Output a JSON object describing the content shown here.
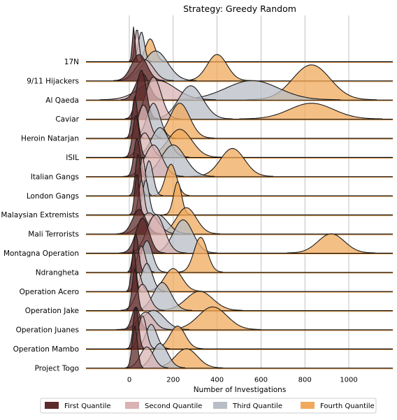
{
  "chart_data": {
    "type": "ridgeline",
    "title": "Strategy: Greedy Random",
    "xlabel": "Number of Investigations",
    "ylabel": "",
    "xlim": [
      -200,
      1200
    ],
    "xticks": [
      0,
      200,
      400,
      600,
      800,
      1000
    ],
    "grid": "vertical",
    "legend_position": "bottom",
    "series": [
      {
        "name": "First Quantile",
        "color": "#5e2a2a"
      },
      {
        "name": "Second Quantile",
        "color": "#d9b3b3"
      },
      {
        "name": "Third Quantile",
        "color": "#b8bec6"
      },
      {
        "name": "Fourth Quantile",
        "color": "#f0a95c"
      }
    ],
    "rows": [
      {
        "label": "17N",
        "peaks": [
          {
            "peak": 20,
            "spread": 6,
            "height": 1.0
          },
          {
            "peak": 35,
            "spread": 9,
            "height": 0.95
          },
          {
            "peak": 55,
            "spread": 14,
            "height": 0.85
          },
          {
            "peak": 95,
            "spread": 22,
            "height": 0.65
          }
        ]
      },
      {
        "label": "9/11 Hijackers",
        "peaks": [
          {
            "peak": 45,
            "spread": 35,
            "height": 0.75
          },
          {
            "peak": 70,
            "spread": 40,
            "height": 0.6
          },
          {
            "peak": 120,
            "spread": 55,
            "height": 0.85
          },
          {
            "peak": 400,
            "spread": 45,
            "height": 0.75
          }
        ]
      },
      {
        "label": "Al Qaeda",
        "peaks": [
          {
            "peak": 60,
            "spread": 30,
            "height": 0.75
          },
          {
            "peak": 130,
            "spread": 80,
            "height": 0.55
          },
          {
            "peak": 560,
            "spread": 120,
            "height": 0.55
          },
          {
            "peak": 830,
            "spread": 85,
            "height": 1.0
          }
        ]
      },
      {
        "label": "Caviar",
        "peaks": [
          {
            "peak": 55,
            "spread": 22,
            "height": 1.4
          },
          {
            "peak": 110,
            "spread": 35,
            "height": 1.2
          },
          {
            "peak": 280,
            "spread": 55,
            "height": 0.95
          },
          {
            "peak": 830,
            "spread": 100,
            "height": 0.45
          }
        ]
      },
      {
        "label": "Heroin Natarjan",
        "peaks": [
          {
            "peak": 25,
            "spread": 12,
            "height": 1.2
          },
          {
            "peak": 65,
            "spread": 25,
            "height": 0.95
          },
          {
            "peak": 110,
            "spread": 30,
            "height": 1.0
          },
          {
            "peak": 230,
            "spread": 45,
            "height": 1.0
          }
        ]
      },
      {
        "label": "ISIL",
        "peaks": [
          {
            "peak": 30,
            "spread": 15,
            "height": 1.2
          },
          {
            "peak": 70,
            "spread": 28,
            "height": 0.7
          },
          {
            "peak": 140,
            "spread": 40,
            "height": 0.85
          },
          {
            "peak": 230,
            "spread": 55,
            "height": 0.8
          }
        ]
      },
      {
        "label": "Italian Gangs",
        "peaks": [
          {
            "peak": 35,
            "spread": 14,
            "height": 1.1
          },
          {
            "peak": 110,
            "spread": 40,
            "height": 0.9
          },
          {
            "peak": 200,
            "spread": 55,
            "height": 0.9
          },
          {
            "peak": 470,
            "spread": 55,
            "height": 0.8
          }
        ]
      },
      {
        "label": "London Gangs",
        "peaks": [
          {
            "peak": 40,
            "spread": 12,
            "height": 1.2
          },
          {
            "peak": 60,
            "spread": 13,
            "height": 1.1
          },
          {
            "peak": 90,
            "spread": 18,
            "height": 1.0
          },
          {
            "peak": 190,
            "spread": 25,
            "height": 0.9
          }
        ]
      },
      {
        "label": "Malaysian Extremists",
        "peaks": [
          {
            "peak": 35,
            "spread": 10,
            "height": 1.2
          },
          {
            "peak": 55,
            "spread": 12,
            "height": 1.0
          },
          {
            "peak": 75,
            "spread": 15,
            "height": 1.0
          },
          {
            "peak": 220,
            "spread": 18,
            "height": 0.95
          }
        ]
      },
      {
        "label": "Mali Terrorists",
        "peaks": [
          {
            "peak": 45,
            "spread": 30,
            "height": 0.7
          },
          {
            "peak": 90,
            "spread": 40,
            "height": 0.6
          },
          {
            "peak": 130,
            "spread": 45,
            "height": 0.55
          },
          {
            "peak": 260,
            "spread": 45,
            "height": 0.75
          }
        ]
      },
      {
        "label": "Montagna Operation",
        "peaks": [
          {
            "peak": 60,
            "spread": 30,
            "height": 1.0
          },
          {
            "peak": 120,
            "spread": 40,
            "height": 1.1
          },
          {
            "peak": 245,
            "spread": 45,
            "height": 0.95
          },
          {
            "peak": 920,
            "spread": 60,
            "height": 0.55
          }
        ]
      },
      {
        "label": "Ndrangheta",
        "peaks": [
          {
            "peak": 30,
            "spread": 12,
            "height": 1.1
          },
          {
            "peak": 55,
            "spread": 18,
            "height": 0.75
          },
          {
            "peak": 80,
            "spread": 25,
            "height": 0.9
          },
          {
            "peak": 325,
            "spread": 30,
            "height": 1.0
          }
        ]
      },
      {
        "label": "Operation Acero",
        "peaks": [
          {
            "peak": 20,
            "spread": 10,
            "height": 1.2
          },
          {
            "peak": 40,
            "spread": 15,
            "height": 0.55
          },
          {
            "peak": 80,
            "spread": 25,
            "height": 0.8
          },
          {
            "peak": 200,
            "spread": 40,
            "height": 0.65
          }
        ]
      },
      {
        "label": "Operation Jake",
        "peaks": [
          {
            "peak": 25,
            "spread": 12,
            "height": 1.2
          },
          {
            "peak": 60,
            "spread": 30,
            "height": 0.75
          },
          {
            "peak": 150,
            "spread": 40,
            "height": 0.8
          },
          {
            "peak": 320,
            "spread": 60,
            "height": 0.55
          }
        ]
      },
      {
        "label": "Operation Juanes",
        "peaks": [
          {
            "peak": 30,
            "spread": 18,
            "height": 0.65
          },
          {
            "peak": 75,
            "spread": 35,
            "height": 0.5
          },
          {
            "peak": 110,
            "spread": 50,
            "height": 0.55
          },
          {
            "peak": 380,
            "spread": 65,
            "height": 0.65
          }
        ]
      },
      {
        "label": "Operation Mambo",
        "peaks": [
          {
            "peak": 30,
            "spread": 12,
            "height": 1.2
          },
          {
            "peak": 60,
            "spread": 18,
            "height": 0.95
          },
          {
            "peak": 100,
            "spread": 25,
            "height": 0.7
          },
          {
            "peak": 220,
            "spread": 35,
            "height": 0.65
          }
        ]
      },
      {
        "label": "Project Togo",
        "peaks": [
          {
            "peak": 25,
            "spread": 12,
            "height": 1.2
          },
          {
            "peak": 80,
            "spread": 30,
            "height": 0.6
          },
          {
            "peak": 140,
            "spread": 35,
            "height": 0.7
          },
          {
            "peak": 260,
            "spread": 50,
            "height": 0.55
          }
        ]
      }
    ]
  }
}
